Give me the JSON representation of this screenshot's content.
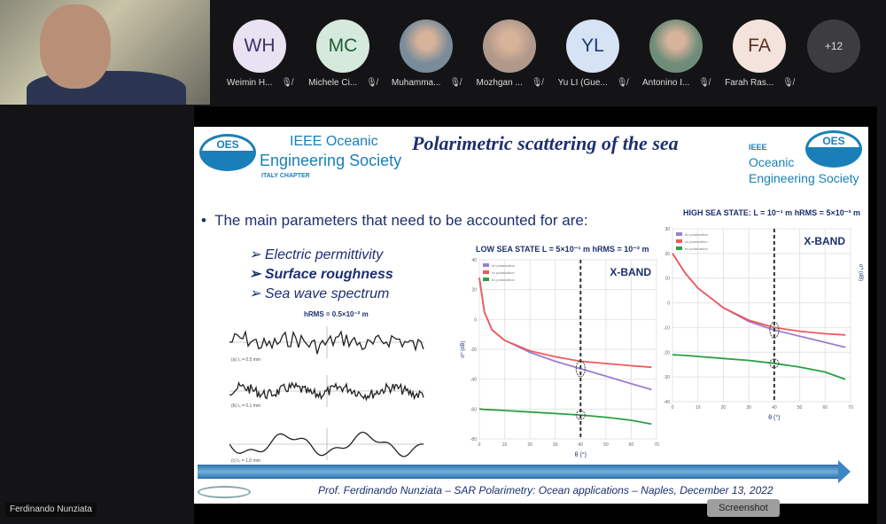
{
  "self_view": {
    "name": "Ferdinando Nunziata"
  },
  "participants": [
    {
      "initials": "WH",
      "name": "Weimin H...",
      "bg": "#e8e2f2",
      "fg": "#3c3468"
    },
    {
      "initials": "MC",
      "name": "Michele Ci...",
      "bg": "#d5eadc",
      "fg": "#1f5b34"
    },
    {
      "initials": "",
      "name": "Muhamma...",
      "bg": "#7a8c9a",
      "fg": "#fff"
    },
    {
      "initials": "",
      "name": "Mozhgan ...",
      "bg": "#b0988a",
      "fg": "#fff"
    },
    {
      "initials": "YL",
      "name": "Yu LI (Gue...",
      "bg": "#d6e3f5",
      "fg": "#1c3a72"
    },
    {
      "initials": "",
      "name": "Antonino I...",
      "bg": "#6f8c7a",
      "fg": "#fff"
    },
    {
      "initials": "FA",
      "name": "Farah Ras...",
      "bg": "#f4e3dc",
      "fg": "#5a3024"
    }
  ],
  "overflow_count": "+12",
  "slide": {
    "logo_left": {
      "badge": "OES",
      "line1": "IEEE Oceanic",
      "line2": "Engineering Society",
      "line3": "ITALY CHAPTER"
    },
    "logo_right": {
      "badge": "OES",
      "line1": "IEEE",
      "line2": "Oceanic",
      "line3": "Engineering Society"
    },
    "title": "Polarimetric scattering of the sea",
    "bullet": "The main parameters that need to be accounted for are:",
    "subitems": [
      "Electric permittivity",
      "Surface roughness",
      "Sea wave spectrum"
    ],
    "roughness_label": "hRMS = 0.5×10⁻² m",
    "roughness_captions": [
      "(a) l₀ = 0.5 mm",
      "(b) l₀ = 0.1 mm",
      "(c) l₀ = 1.0 mm"
    ],
    "footer": "Prof. Ferdinando Nunziata – SAR Polarimetry: Ocean applications – Naples, December 13, 2022"
  },
  "chart_data": [
    {
      "type": "line",
      "title": "LOW SEA STATE L = 5×10⁻¹ m hRMS = 10⁻² m",
      "band": "X-BAND",
      "xlabel": "θ (°)",
      "ylabel": "σ⁰ (dB)",
      "xlim": [
        0,
        70
      ],
      "ylim": [
        -80,
        40
      ],
      "xticks": [
        0,
        10,
        20,
        30,
        40,
        50,
        60,
        70
      ],
      "yticks": [
        40,
        20,
        0,
        -20,
        -40,
        -60,
        -80
      ],
      "marker_x": 40,
      "x": [
        0,
        2,
        5,
        10,
        20,
        30,
        40,
        50,
        60,
        68
      ],
      "series": [
        {
          "name": "hh polarization",
          "color": "#9b7fd0",
          "values": [
            28,
            5,
            -7,
            -14,
            -22,
            -28,
            -33,
            -38,
            -43,
            -47
          ]
        },
        {
          "name": "vv polarization",
          "color": "#f05a5a",
          "values": [
            28,
            5,
            -7,
            -14,
            -21,
            -25,
            -28,
            -29.5,
            -31,
            -32
          ]
        },
        {
          "name": "hv polarization",
          "color": "#2aa043",
          "values": [
            -60,
            -60.3,
            -60.5,
            -61,
            -62,
            -63,
            -64,
            -65.5,
            -67.5,
            -70
          ]
        }
      ]
    },
    {
      "type": "line",
      "title": "HIGH SEA STATE: L = 10⁻¹ m  hRMS = 5×10⁻³ m",
      "band": "X-BAND",
      "xlabel": "θ (°)",
      "ylabel": "σ⁰ (dB)",
      "xlim": [
        0,
        70
      ],
      "ylim": [
        -40,
        30
      ],
      "xticks": [
        0,
        10,
        20,
        30,
        40,
        50,
        60,
        70
      ],
      "yticks": [
        30,
        20,
        10,
        0,
        -10,
        -20,
        -30,
        -40
      ],
      "marker_x": 40,
      "x": [
        0,
        5,
        10,
        20,
        30,
        40,
        50,
        60,
        68
      ],
      "series": [
        {
          "name": "hh polarization",
          "color": "#9b7fd0",
          "values": [
            20,
            12,
            6,
            -2,
            -7.5,
            -11,
            -13.5,
            -16,
            -18
          ]
        },
        {
          "name": "vv polarization",
          "color": "#f05a5a",
          "values": [
            20,
            12,
            6,
            -2,
            -7,
            -10,
            -11.5,
            -12.5,
            -13
          ]
        },
        {
          "name": "hv polarization",
          "color": "#2aa043",
          "values": [
            -21,
            -21.3,
            -21.7,
            -22.5,
            -23.3,
            -24.5,
            -26,
            -28,
            -31
          ]
        }
      ]
    }
  ],
  "tooltip": "Screenshot"
}
